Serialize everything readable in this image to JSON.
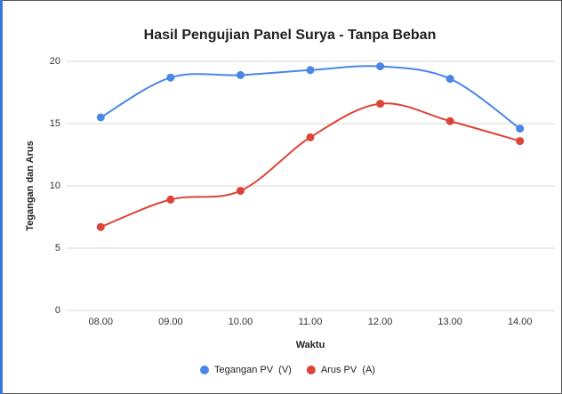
{
  "chart_data": {
    "type": "line",
    "title": "Hasil Pengujian Panel Surya - Tanpa Beban",
    "xlabel": "Waktu",
    "ylabel": "Tegangan dan Arus",
    "categories": [
      "08.00",
      "09.00",
      "10.00",
      "11.00",
      "12.00",
      "13.00",
      "14.00"
    ],
    "series": [
      {
        "name": "Tegangan PV  (V)",
        "color": "#4a86e8",
        "values": [
          15.5,
          18.7,
          18.9,
          19.3,
          19.6,
          18.6,
          14.6
        ]
      },
      {
        "name": "Arus PV  (A)",
        "color": "#db4437",
        "values": [
          6.7,
          8.9,
          9.6,
          13.9,
          16.6,
          15.2,
          13.6
        ]
      }
    ],
    "ylim": [
      0,
      20
    ],
    "yticks": [
      0,
      5,
      10,
      15,
      20
    ],
    "grid": true,
    "smooth": true,
    "legend": "bottom"
  }
}
